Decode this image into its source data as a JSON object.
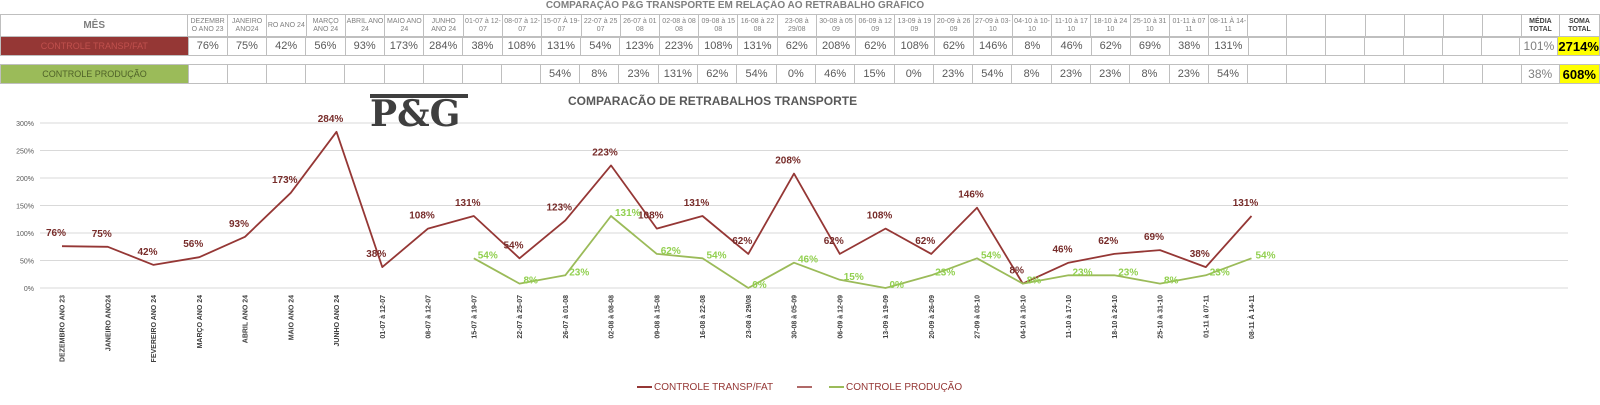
{
  "sheet": {
    "title": "COMPARAÇÃO P&G  TRANSPORTE EM RELAÇÃO AO RETRABALHO GRÁFICO",
    "mes_label": "MÊS",
    "periods": [
      "DEZEMBR O ANO 23",
      "JANEIRO ANO24",
      "RO ANO 24",
      "MARÇO ANO 24",
      "ABRIL ANO 24",
      "MAIO ANO 24",
      "JUNHO ANO 24",
      "01-07 à 12-07",
      "08-07 à 12-07",
      "15-07 À 19-07",
      "22-07 à 25 07",
      "26-07 à 01 08",
      "02-08 à 08 08",
      "09-08 à 15 08",
      "16-08 à 22 08",
      "23-08 à 29/08",
      "30-08 à 05 09",
      "06-09 à 12 09",
      "13-09 à 19 09",
      "20-09 à 26 09",
      "27-09 à 03-10",
      "04-10 à 10-10",
      "11-10 à 17 10",
      "18-10 à 24 10",
      "25-10 à 31 10",
      "01-11 à 07 11",
      "08-11 À 14-11"
    ],
    "media_header": "MÉDIA TOTAL",
    "soma_header": "SOMA TOTAL",
    "rows": [
      {
        "label": "CONTROLE TRANSP/FAT",
        "values": [
          "76%",
          "75%",
          "42%",
          "56%",
          "93%",
          "173%",
          "284%",
          "38%",
          "108%",
          "131%",
          "54%",
          "123%",
          "223%",
          "108%",
          "131%",
          "62%",
          "208%",
          "62%",
          "108%",
          "62%",
          "146%",
          "8%",
          "46%",
          "62%",
          "69%",
          "38%",
          "131%"
        ],
        "media": "101%",
        "soma": "2714%"
      },
      {
        "label": "CONTROLE PRODUÇÃO",
        "values": [
          "",
          "",
          "",
          "",
          "",
          "",
          "",
          "",
          "",
          "54%",
          "8%",
          "23%",
          "131%",
          "62%",
          "54%",
          "0%",
          "46%",
          "15%",
          "0%",
          "23%",
          "54%",
          "8%",
          "23%",
          "23%",
          "8%",
          "23%",
          "54%"
        ],
        "media": "38%",
        "soma": "608%"
      }
    ]
  },
  "logo_text": "P&G",
  "colors": {
    "series_a": "#953735",
    "series_b": "#9bbb59",
    "label_a": "#772c2a",
    "label_b": "#92d050",
    "highlight": "#ffff00"
  },
  "chart_data": {
    "type": "line",
    "title": "COMPARACÃO DE RETRABALHOS TRANSPORTE",
    "xlabel": "",
    "ylabel": "",
    "ylim": [
      0,
      300
    ],
    "yticks": [
      "0%",
      "50%",
      "100%",
      "150%",
      "200%",
      "250%",
      "300%"
    ],
    "grid": true,
    "legend_position": "bottom",
    "categories": [
      "DEZEMBRO ANO 23",
      "JANEIRO ANO24",
      "FEVEREIRO ANO 24",
      "MARÇO ANO 24",
      "ABRIL ANO 24",
      "MAIO ANO 24",
      "JUNHO ANO 24",
      "01-07 à 12-07",
      "08-07 à 12-07",
      "15-07 à 19-07",
      "22-07 à 25-07",
      "26-07 à 01-08",
      "02-08 à 08-08",
      "09-08 à 15-08",
      "16-08 à 22-08",
      "23-08 à 29/08",
      "30-08 à 05-09",
      "06-09 à 12-09",
      "13-09 à 19-09",
      "20-09 à 26-09",
      "27-09 à 03-10",
      "04-10 à 10-10",
      "11-10 à 17-10",
      "18-10 à 24-10",
      "25-10 à 31-10",
      "01-11 à 07-11",
      "08-11 À 14-11"
    ],
    "series": [
      {
        "name": "CONTROLE TRANSP/FAT",
        "values": [
          76,
          75,
          42,
          56,
          93,
          173,
          284,
          38,
          108,
          131,
          54,
          123,
          223,
          108,
          131,
          62,
          208,
          62,
          108,
          62,
          146,
          8,
          46,
          62,
          69,
          38,
          131
        ]
      },
      {
        "name": "CONTROLE PRODUÇÃO",
        "values": [
          null,
          null,
          null,
          null,
          null,
          null,
          null,
          null,
          null,
          54,
          8,
          23,
          131,
          62,
          54,
          0,
          46,
          15,
          0,
          23,
          54,
          8,
          23,
          23,
          8,
          23,
          54
        ]
      }
    ]
  }
}
